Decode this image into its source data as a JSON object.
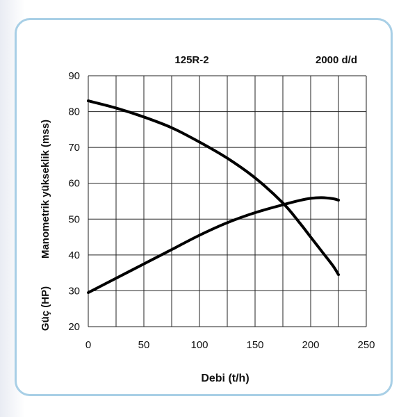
{
  "chart_data": {
    "type": "line",
    "model_label": "125R-2",
    "speed_label": "2000 d/d",
    "xlabel": "Debi (t/h)",
    "ylabel_primary": "Manometrik yükseklik (mss)",
    "ylabel_secondary": "Güç (HP)",
    "xlim": [
      0,
      250
    ],
    "ylim": [
      20,
      90
    ],
    "x_ticks": [
      "0",
      "50",
      "100",
      "150",
      "200",
      "250"
    ],
    "y_ticks": [
      "20",
      "30",
      "40",
      "50",
      "60",
      "70",
      "80",
      "90"
    ],
    "grid": true,
    "series": [
      {
        "x": [
          0,
          25,
          50,
          75,
          100,
          125,
          150,
          175,
          190,
          200,
          210,
          220,
          225
        ],
        "y": [
          83,
          81,
          78.5,
          75.5,
          71.5,
          67,
          61.5,
          54.5,
          49,
          45,
          41,
          37,
          34.5
        ]
      },
      {
        "x": [
          0,
          25,
          50,
          75,
          100,
          125,
          150,
          175,
          190,
          200,
          210,
          220,
          225
        ],
        "y": [
          29.5,
          33.5,
          37.5,
          41.5,
          45.5,
          49,
          51.8,
          54,
          55.2,
          55.8,
          56,
          55.7,
          55.3
        ]
      }
    ]
  }
}
